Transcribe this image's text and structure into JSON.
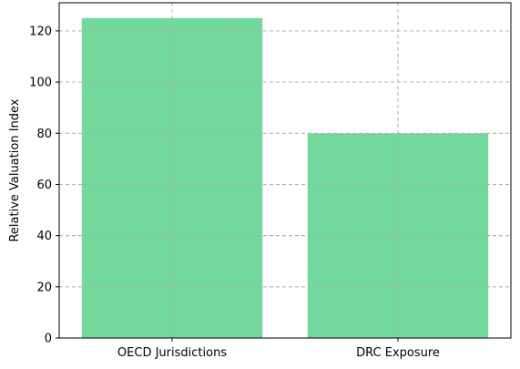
{
  "chart_data": {
    "type": "bar",
    "categories": [
      "OECD Jurisdictions",
      "DRC Exposure"
    ],
    "values": [
      125,
      80
    ],
    "xlabel": "",
    "ylabel": "Relative Valuation Index",
    "ylim": [
      0,
      131
    ],
    "yticks": [
      0,
      20,
      40,
      60,
      80,
      100,
      120
    ],
    "grid": true,
    "bar_color": "#72d89b"
  }
}
